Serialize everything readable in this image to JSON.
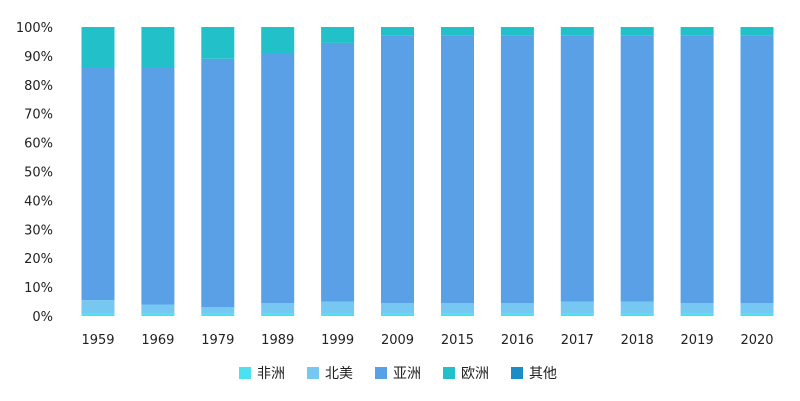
{
  "chart_data": {
    "type": "bar",
    "stacked": true,
    "orientation": "vertical",
    "categories": [
      "1959",
      "1969",
      "1979",
      "1989",
      "1999",
      "2009",
      "2015",
      "2016",
      "2017",
      "2018",
      "2019",
      "2020"
    ],
    "ylim": [
      0,
      100
    ],
    "yticks": [
      "0%",
      "10%",
      "20%",
      "30%",
      "40%",
      "50%",
      "60%",
      "70%",
      "80%",
      "90%",
      "100%"
    ],
    "grid": false,
    "legend_position": "bottom",
    "series": [
      {
        "name": "非洲",
        "color": "#4ee0ee",
        "values": [
          1,
          1,
          1,
          1,
          1,
          1,
          1,
          1,
          1,
          1,
          1,
          1
        ]
      },
      {
        "name": "北美",
        "color": "#76c7f2",
        "values": [
          4.5,
          3,
          2,
          3.5,
          4,
          3.5,
          3.5,
          3.5,
          4,
          4,
          3.5,
          3.5
        ]
      },
      {
        "name": "亚洲",
        "color": "#5aa0e6",
        "values": [
          80.5,
          82,
          86,
          86.5,
          89.5,
          92.5,
          92.5,
          92.5,
          92,
          92,
          92.5,
          92.5
        ]
      },
      {
        "name": "欧洲",
        "color": "#22c0c8",
        "values": [
          14,
          14,
          11,
          9,
          5.5,
          3,
          3,
          3,
          3,
          3,
          3,
          3
        ]
      },
      {
        "name": "其他",
        "color": "#1a8cc6",
        "values": [
          0,
          0,
          0,
          0,
          0,
          0,
          0,
          0,
          0,
          0,
          0,
          0
        ]
      }
    ]
  }
}
